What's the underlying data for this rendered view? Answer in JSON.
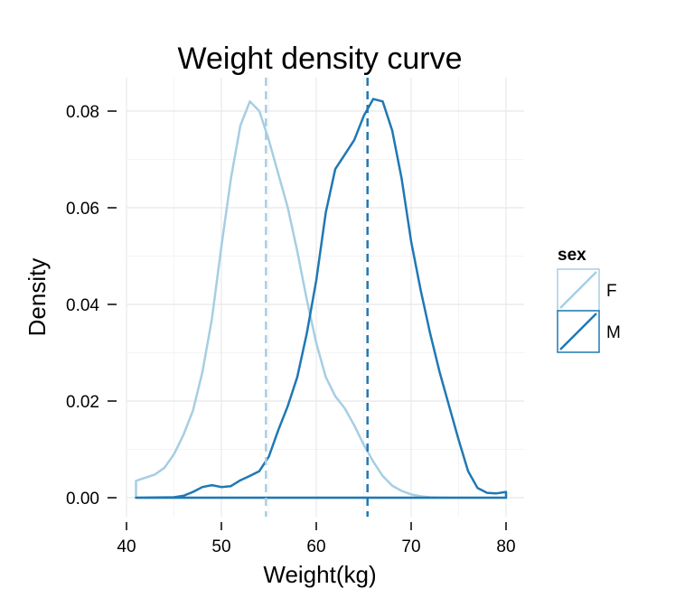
{
  "chart_data": {
    "type": "line",
    "title": "Weight density curve",
    "xlabel": "Weight(kg)",
    "ylabel": "Density",
    "xlim": [
      41,
      80
    ],
    "ylim": [
      0,
      0.0855
    ],
    "x_ticks": [
      40,
      50,
      60,
      70,
      80
    ],
    "y_ticks": [
      0.0,
      0.02,
      0.04,
      0.06,
      0.08
    ],
    "y_tick_labels": [
      "0.00",
      "0.02",
      "0.04",
      "0.06",
      "0.08"
    ],
    "grid": true,
    "legend": {
      "title": "sex",
      "position": "right"
    },
    "series": [
      {
        "name": "F",
        "color": "#a6cee3",
        "mean": 54.7,
        "points": [
          [
            41,
            0.0035
          ],
          [
            43,
            0.0048
          ],
          [
            44,
            0.0062
          ],
          [
            45,
            0.009
          ],
          [
            46,
            0.013
          ],
          [
            47,
            0.018
          ],
          [
            48,
            0.026
          ],
          [
            49,
            0.037
          ],
          [
            50,
            0.052
          ],
          [
            51,
            0.066
          ],
          [
            52,
            0.077
          ],
          [
            53,
            0.082
          ],
          [
            54,
            0.08
          ],
          [
            55,
            0.074
          ],
          [
            56,
            0.067
          ],
          [
            57,
            0.06
          ],
          [
            58,
            0.051
          ],
          [
            59,
            0.041
          ],
          [
            60,
            0.032
          ],
          [
            61,
            0.025
          ],
          [
            62,
            0.021
          ],
          [
            63,
            0.0185
          ],
          [
            64,
            0.015
          ],
          [
            65,
            0.011
          ],
          [
            66,
            0.0075
          ],
          [
            67,
            0.0045
          ],
          [
            68,
            0.0025
          ],
          [
            69,
            0.0014
          ],
          [
            70,
            0.0007
          ],
          [
            71,
            0.0003
          ],
          [
            72,
            0.0001
          ],
          [
            74,
            0.0
          ],
          [
            80,
            0.0
          ]
        ]
      },
      {
        "name": "M",
        "color": "#1f78b4",
        "mean": 65.4,
        "points": [
          [
            41,
            0.0
          ],
          [
            45,
            0.0001
          ],
          [
            46,
            0.0004
          ],
          [
            47,
            0.0012
          ],
          [
            48,
            0.0022
          ],
          [
            49,
            0.0026
          ],
          [
            50,
            0.0022
          ],
          [
            51,
            0.0024
          ],
          [
            52,
            0.0036
          ],
          [
            53,
            0.0045
          ],
          [
            54,
            0.0055
          ],
          [
            55,
            0.0085
          ],
          [
            56,
            0.014
          ],
          [
            57,
            0.019
          ],
          [
            58,
            0.025
          ],
          [
            59,
            0.034
          ],
          [
            60,
            0.045
          ],
          [
            61,
            0.059
          ],
          [
            62,
            0.068
          ],
          [
            63,
            0.071
          ],
          [
            64,
            0.074
          ],
          [
            65,
            0.079
          ],
          [
            66,
            0.0825
          ],
          [
            67,
            0.082
          ],
          [
            68,
            0.076
          ],
          [
            69,
            0.066
          ],
          [
            70,
            0.053
          ],
          [
            71,
            0.043
          ],
          [
            72,
            0.034
          ],
          [
            73,
            0.026
          ],
          [
            74,
            0.019
          ],
          [
            75,
            0.012
          ],
          [
            76,
            0.0055
          ],
          [
            77,
            0.002
          ],
          [
            78,
            0.001
          ],
          [
            79,
            0.0009
          ],
          [
            80,
            0.0012
          ]
        ]
      }
    ]
  }
}
